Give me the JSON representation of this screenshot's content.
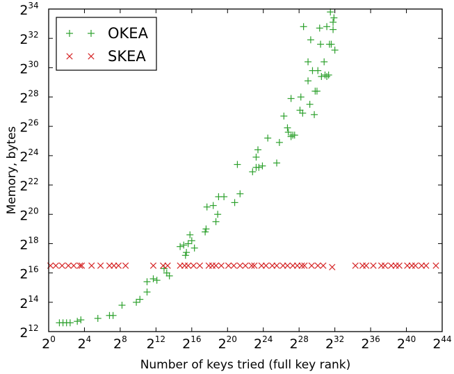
{
  "chart_data": {
    "type": "scatter",
    "xlabel": "Number of keys tried (full key rank)",
    "ylabel": "Memory, bytes",
    "xscale": "log2",
    "yscale": "log2",
    "xlim": [
      0,
      44
    ],
    "ylim": [
      12,
      34
    ],
    "x_tick_base": "2",
    "y_tick_base": "2",
    "x_tick_exponents": [
      "0",
      "4",
      "8",
      "12",
      "16",
      "20",
      "24",
      "28",
      "32",
      "36",
      "40",
      "44"
    ],
    "y_tick_exponents": [
      "12",
      "14",
      "16",
      "18",
      "20",
      "22",
      "24",
      "26",
      "28",
      "30",
      "32",
      "34"
    ],
    "grid": false,
    "legend_position": "top-left",
    "series": [
      {
        "name": "OKEA",
        "marker": "plus",
        "color": "#2ca02c",
        "points_log2": [
          [
            1.2,
            12.6
          ],
          [
            1.6,
            12.6
          ],
          [
            2,
            12.6
          ],
          [
            2.4,
            12.6
          ],
          [
            3.2,
            12.7
          ],
          [
            3.6,
            12.8
          ],
          [
            5.5,
            12.9
          ],
          [
            6.8,
            13.1
          ],
          [
            7.2,
            13.1
          ],
          [
            8.2,
            13.8
          ],
          [
            9.8,
            14
          ],
          [
            10.2,
            14.2
          ],
          [
            11,
            14.7
          ],
          [
            11,
            15.4
          ],
          [
            11.7,
            15.6
          ],
          [
            12.1,
            15.5
          ],
          [
            12.9,
            16.3
          ],
          [
            13.2,
            16
          ],
          [
            13.5,
            15.8
          ],
          [
            14.7,
            17.8
          ],
          [
            15.1,
            17.9
          ],
          [
            15.3,
            17.2
          ],
          [
            15.4,
            17.4
          ],
          [
            15.6,
            18
          ],
          [
            15.8,
            18.6
          ],
          [
            16,
            18.2
          ],
          [
            16.3,
            17.7
          ],
          [
            17.5,
            18.8
          ],
          [
            17.6,
            19
          ],
          [
            17.7,
            20.5
          ],
          [
            18.4,
            20.6
          ],
          [
            18.7,
            19.5
          ],
          [
            18.9,
            20
          ],
          [
            19,
            21.2
          ],
          [
            19.6,
            21.2
          ],
          [
            20.8,
            20.8
          ],
          [
            21.1,
            23.4
          ],
          [
            21.4,
            21.4
          ],
          [
            22.8,
            22.9
          ],
          [
            23.2,
            23.2
          ],
          [
            23.2,
            23.9
          ],
          [
            23.4,
            24.4
          ],
          [
            23.5,
            23.2
          ],
          [
            23.9,
            23.3
          ],
          [
            24.5,
            25.2
          ],
          [
            25.5,
            23.5
          ],
          [
            25.8,
            24.9
          ],
          [
            26.3,
            26.7
          ],
          [
            26.7,
            25.9
          ],
          [
            26.8,
            25.6
          ],
          [
            27.1,
            27.9
          ],
          [
            27.1,
            25.3
          ],
          [
            27.3,
            25.4
          ],
          [
            27.5,
            25.4
          ],
          [
            28.2,
            28
          ],
          [
            28.1,
            27.1
          ],
          [
            28.4,
            26.9
          ],
          [
            28.5,
            32.8
          ],
          [
            29,
            30.4
          ],
          [
            29,
            29.1
          ],
          [
            29.2,
            27.5
          ],
          [
            29.3,
            31.9
          ],
          [
            29.5,
            29.8
          ],
          [
            29.7,
            26.8
          ],
          [
            29.8,
            28.4
          ],
          [
            30,
            28.4
          ],
          [
            30.1,
            29.8
          ],
          [
            30.3,
            32.7
          ],
          [
            30.4,
            31.6
          ],
          [
            30.5,
            29.4
          ],
          [
            30.8,
            30.4
          ],
          [
            30.9,
            29.5
          ],
          [
            31.1,
            29.4
          ],
          [
            31.3,
            29.5
          ],
          [
            31.4,
            31.6
          ],
          [
            31.6,
            31.6
          ],
          [
            31.8,
            33.1
          ],
          [
            31.8,
            32.6
          ],
          [
            31.9,
            33.4
          ],
          [
            32,
            31.2
          ],
          [
            31.1,
            32.8
          ],
          [
            31.5,
            33.8
          ]
        ]
      },
      {
        "name": "SKEA",
        "marker": "x",
        "color": "#d62728",
        "points_log2": [
          [
            0.2,
            16.5
          ],
          [
            0.8,
            16.5
          ],
          [
            1.5,
            16.5
          ],
          [
            2.2,
            16.5
          ],
          [
            2.8,
            16.5
          ],
          [
            3.5,
            16.5
          ],
          [
            3.7,
            16.5
          ],
          [
            4.8,
            16.5
          ],
          [
            5.8,
            16.5
          ],
          [
            6.8,
            16.5
          ],
          [
            7.3,
            16.5
          ],
          [
            7.8,
            16.5
          ],
          [
            8.6,
            16.5
          ],
          [
            11.7,
            16.5
          ],
          [
            12.8,
            16.5
          ],
          [
            13.3,
            16.5
          ],
          [
            14.7,
            16.5
          ],
          [
            15.2,
            16.5
          ],
          [
            15.6,
            16.5
          ],
          [
            16.2,
            16.5
          ],
          [
            16.9,
            16.5
          ],
          [
            17.9,
            16.5
          ],
          [
            18.3,
            16.5
          ],
          [
            18.7,
            16.5
          ],
          [
            19.3,
            16.5
          ],
          [
            20.1,
            16.5
          ],
          [
            20.7,
            16.5
          ],
          [
            21.4,
            16.5
          ],
          [
            22,
            16.5
          ],
          [
            22.7,
            16.5
          ],
          [
            23,
            16.5
          ],
          [
            23.8,
            16.5
          ],
          [
            24.3,
            16.5
          ],
          [
            25,
            16.5
          ],
          [
            25.5,
            16.5
          ],
          [
            26.2,
            16.5
          ],
          [
            26.7,
            16.5
          ],
          [
            27.3,
            16.5
          ],
          [
            27.8,
            16.5
          ],
          [
            28.3,
            16.5
          ],
          [
            28.6,
            16.5
          ],
          [
            29.4,
            16.5
          ],
          [
            30.1,
            16.5
          ],
          [
            30.7,
            16.5
          ],
          [
            31.7,
            16.4
          ],
          [
            34.3,
            16.5
          ],
          [
            35.1,
            16.5
          ],
          [
            35.5,
            16.5
          ],
          [
            36.3,
            16.5
          ],
          [
            37.2,
            16.5
          ],
          [
            37.6,
            16.5
          ],
          [
            38.3,
            16.5
          ],
          [
            38.8,
            16.5
          ],
          [
            39.2,
            16.5
          ],
          [
            40.1,
            16.5
          ],
          [
            40.6,
            16.5
          ],
          [
            41,
            16.5
          ],
          [
            41.7,
            16.5
          ],
          [
            42.2,
            16.5
          ],
          [
            43.3,
            16.5
          ]
        ]
      }
    ]
  }
}
